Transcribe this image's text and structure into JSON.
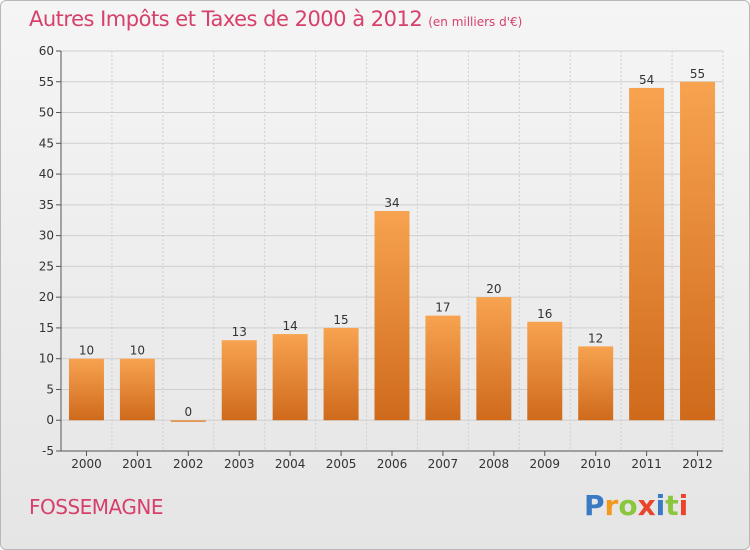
{
  "title": "Autres Impôts et Taxes de 2000 à 2012",
  "unit_label": "(en milliers d'€)",
  "commune": "FOSSEMAGNE",
  "logo": {
    "letters": [
      "P",
      "r",
      "o",
      "x",
      "i",
      "t",
      "i"
    ],
    "colors": [
      "#3a79c4",
      "#f39a1d",
      "#8cc63f",
      "#e8452c",
      "#3a79c4",
      "#8cc63f",
      "#e8452c"
    ]
  },
  "colors": {
    "accent": "#d6406a",
    "bar_light": "#f7a350",
    "bar_dark": "#cf6a1b",
    "grid": "#cfcfcf"
  },
  "chart_data": {
    "type": "bar",
    "title": "Autres Impôts et Taxes de 2000 à 2012",
    "ylabel": "(en milliers d'€)",
    "categories": [
      "2000",
      "2001",
      "2002",
      "2003",
      "2004",
      "2005",
      "2006",
      "2007",
      "2008",
      "2009",
      "2010",
      "2011",
      "2012"
    ],
    "values": [
      10,
      10,
      0,
      13,
      14,
      15,
      34,
      17,
      20,
      16,
      12,
      54,
      55
    ],
    "ylim": [
      -5,
      60
    ],
    "yticks": [
      -5,
      0,
      5,
      10,
      15,
      20,
      25,
      30,
      35,
      40,
      45,
      50,
      55,
      60
    ],
    "grid": true,
    "legend": "none"
  }
}
